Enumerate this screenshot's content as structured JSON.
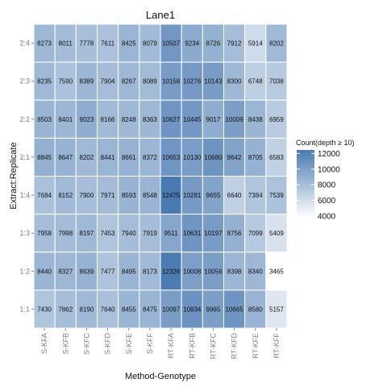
{
  "chart_data": {
    "type": "heatmap",
    "title": "Lane1",
    "xlabel": "Method-Genotype",
    "ylabel": "Extract:Replicate",
    "x_categories": [
      "S-KFA",
      "S-KFB",
      "S-KFC",
      "S-KFD",
      "S-KFE",
      "S-KFF",
      "RT-KFA",
      "RT-KFB",
      "RT-KFC",
      "RT-KFD",
      "RT-KFE",
      "RT-KFF"
    ],
    "y_categories": [
      "2:4",
      "2:3",
      "2:2",
      "2:1",
      "1:4",
      "1:3",
      "1:2",
      "1:1"
    ],
    "values": [
      [
        8273,
        8011,
        7778,
        7611,
        8425,
        8079,
        10507,
        9234,
        8726,
        7912,
        5914,
        8202
      ],
      [
        8235,
        7590,
        8389,
        7904,
        8267,
        8089,
        10158,
        10276,
        10143,
        8300,
        6748,
        7038
      ],
      [
        8503,
        8401,
        9023,
        8166,
        8248,
        8363,
        10627,
        10445,
        9017,
        10009,
        8438,
        6959
      ],
      [
        8845,
        8647,
        8202,
        8441,
        8661,
        8372,
        10653,
        10130,
        10680,
        9642,
        8705,
        6583
      ],
      [
        7684,
        8152,
        7900,
        7971,
        8593,
        8548,
        12475,
        10281,
        9655,
        6640,
        7384,
        7539
      ],
      [
        7958,
        7998,
        8197,
        7453,
        7940,
        7919,
        9511,
        10631,
        10197,
        8756,
        7099,
        5409
      ],
      [
        8440,
        8327,
        8639,
        7477,
        8495,
        8173,
        12326,
        10008,
        10056,
        8398,
        8340,
        3465
      ],
      [
        7430,
        7862,
        8190,
        7640,
        8455,
        8475,
        10097,
        10834,
        9965,
        10665,
        8580,
        5157
      ]
    ],
    "legend": {
      "title": "Count(depth ≥ 10)",
      "ticks": [
        12000,
        10000,
        8000,
        6000,
        4000
      ],
      "placement": "right"
    },
    "color_low": "#ffffff",
    "color_high": "#4a7ab2"
  }
}
